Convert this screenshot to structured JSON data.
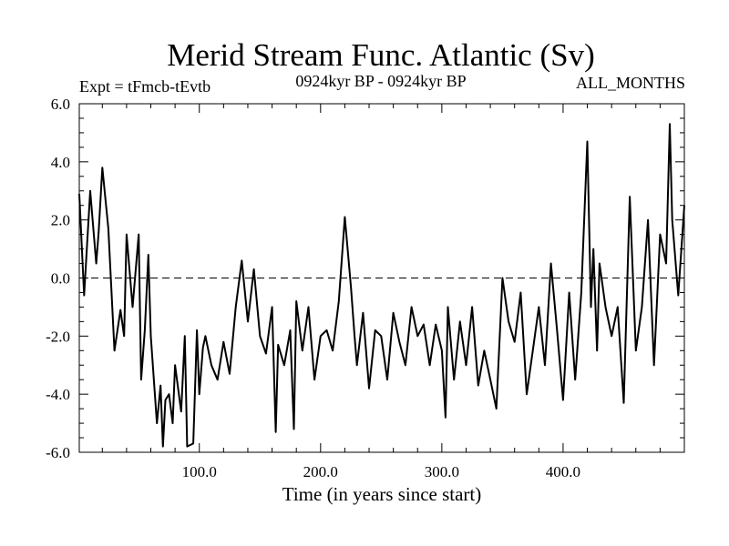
{
  "chart_data": {
    "type": "line",
    "title": "Merid Stream Func. Atlantic (Sv)",
    "subtitle_left": "Expt = tFmcb-tEvtb",
    "subtitle_center": "0924kyr BP - 0924kyr BP",
    "subtitle_right": "ALL_MONTHS",
    "xlabel": "Time (in years since start)",
    "ylabel": "",
    "xlim": [
      1,
      500
    ],
    "ylim": [
      -6.0,
      6.0
    ],
    "x_ticks": [
      100,
      200,
      300,
      400
    ],
    "x_tick_labels": [
      "100.0",
      "200.0",
      "300.0",
      "400.0"
    ],
    "y_ticks": [
      -6,
      -4,
      -2,
      0,
      2,
      4,
      6
    ],
    "y_tick_labels": [
      "-6.0",
      "-4.0",
      "-2.0",
      "0.0",
      "2.0",
      "4.0",
      "6.0"
    ],
    "reference_line": {
      "y": 0.0,
      "style": "dashed"
    },
    "line_color": "#000000",
    "series": [
      {
        "name": "Merid Stream Func. Atlantic",
        "x": [
          1,
          5,
          10,
          15,
          17,
          20,
          25,
          30,
          35,
          38,
          40,
          45,
          50,
          52,
          55,
          58,
          60,
          63,
          65,
          68,
          70,
          72,
          75,
          78,
          80,
          85,
          88,
          90,
          95,
          98,
          100,
          103,
          105,
          110,
          115,
          120,
          125,
          130,
          135,
          140,
          145,
          150,
          155,
          160,
          163,
          165,
          170,
          175,
          178,
          180,
          185,
          190,
          195,
          200,
          205,
          210,
          215,
          220,
          225,
          228,
          230,
          235,
          240,
          245,
          250,
          255,
          260,
          265,
          270,
          275,
          280,
          285,
          290,
          295,
          300,
          303,
          305,
          310,
          315,
          320,
          325,
          330,
          335,
          340,
          345,
          350,
          355,
          360,
          365,
          370,
          375,
          380,
          385,
          390,
          395,
          400,
          405,
          410,
          415,
          420,
          423,
          425,
          428,
          430,
          435,
          440,
          445,
          450,
          455,
          460,
          465,
          470,
          475,
          480,
          485,
          488,
          490,
          495,
          500
        ],
        "values": [
          2.9,
          -0.6,
          3.0,
          0.5,
          1.6,
          3.8,
          1.7,
          -2.5,
          -1.1,
          -2.0,
          1.5,
          -1.0,
          1.5,
          -3.5,
          -1.8,
          0.8,
          -2.0,
          -3.8,
          -5.0,
          -3.7,
          -5.8,
          -4.2,
          -4.0,
          -5.0,
          -3.0,
          -4.6,
          -2.0,
          -5.8,
          -5.7,
          -1.8,
          -4.0,
          -2.4,
          -2.0,
          -3.0,
          -3.5,
          -2.2,
          -3.3,
          -1.0,
          0.6,
          -1.5,
          0.3,
          -2.0,
          -2.6,
          -1.0,
          -5.3,
          -2.3,
          -3.0,
          -1.8,
          -5.2,
          -0.8,
          -2.5,
          -1.0,
          -3.5,
          -2.0,
          -1.8,
          -2.5,
          -0.8,
          2.1,
          -0.3,
          -2.0,
          -3.0,
          -1.2,
          -3.8,
          -1.8,
          -2.0,
          -3.5,
          -1.2,
          -2.2,
          -3.0,
          -1.0,
          -2.0,
          -1.6,
          -3.0,
          -1.6,
          -2.5,
          -4.8,
          -1.0,
          -3.5,
          -1.5,
          -3.0,
          -1.0,
          -3.7,
          -2.5,
          -3.5,
          -4.5,
          0.0,
          -1.5,
          -2.2,
          -0.5,
          -4.0,
          -2.5,
          -1.0,
          -3.0,
          0.5,
          -1.8,
          -4.2,
          -0.5,
          -3.5,
          -0.5,
          4.7,
          -1.0,
          1.0,
          -2.5,
          0.5,
          -1.0,
          -2.0,
          -1.0,
          -4.3,
          2.8,
          -2.5,
          -1.0,
          2.0,
          -3.0,
          1.5,
          0.5,
          5.3,
          2.0,
          -0.6,
          2.5
        ]
      }
    ]
  }
}
